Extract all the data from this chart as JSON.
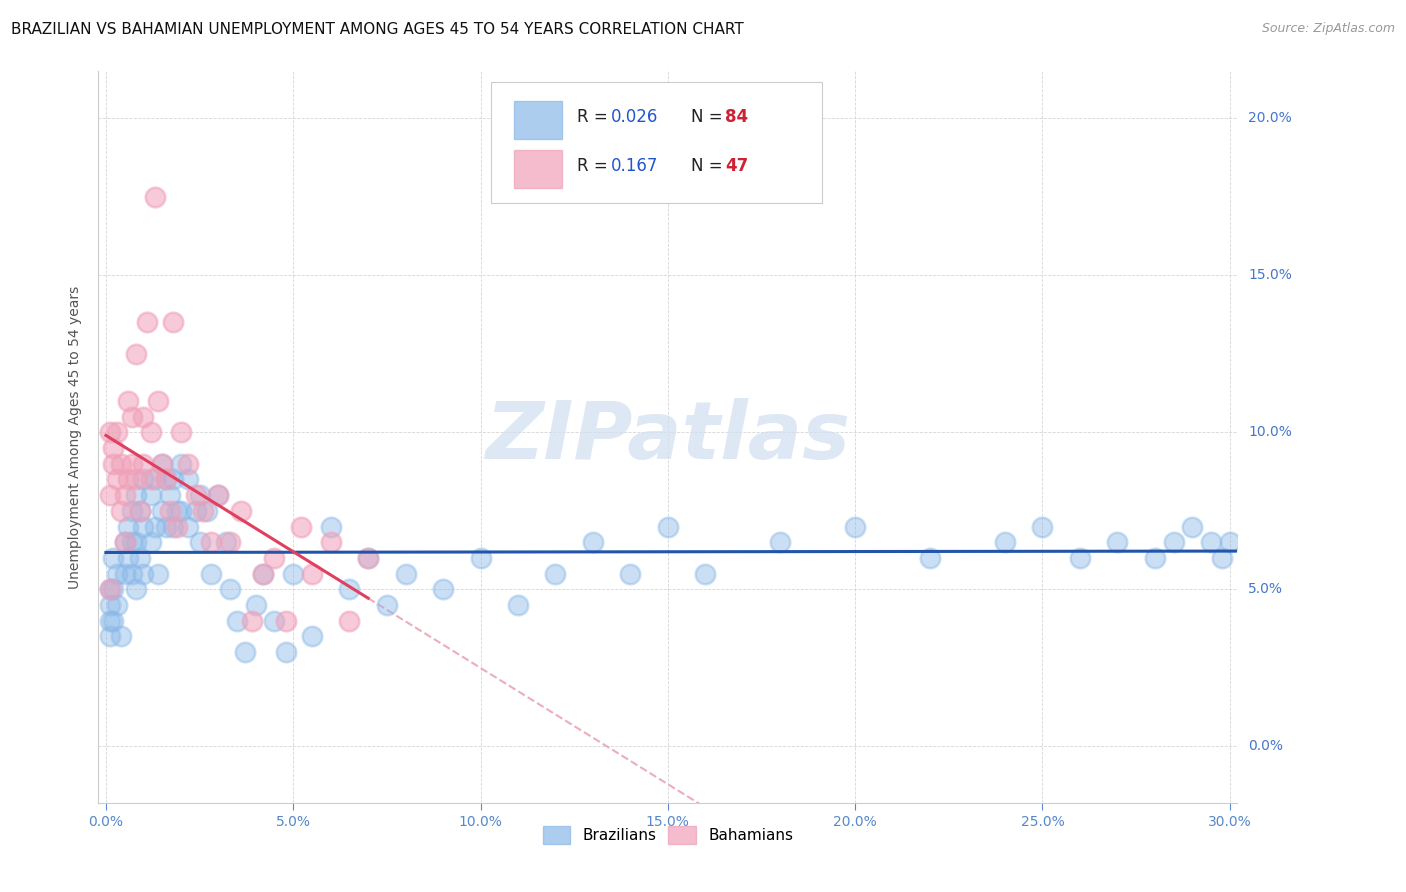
{
  "title": "BRAZILIAN VS BAHAMIAN UNEMPLOYMENT AMONG AGES 45 TO 54 YEARS CORRELATION CHART",
  "source": "Source: ZipAtlas.com",
  "ylabel": "Unemployment Among Ages 45 to 54 years",
  "ylabel_ticks_right": [
    "20.0%",
    "15.0%",
    "10.0%",
    "5.0%"
  ],
  "ylabel_vals": [
    0.0,
    0.05,
    0.1,
    0.15,
    0.2
  ],
  "xlabel_ticks": [
    "0.0%",
    "5.0%",
    "10.0%",
    "15.0%",
    "20.0%",
    "25.0%",
    "30.0%"
  ],
  "xlabel_vals": [
    0.0,
    0.05,
    0.1,
    0.15,
    0.2,
    0.25,
    0.3
  ],
  "xlim": [
    -0.002,
    0.302
  ],
  "ylim": [
    -0.018,
    0.215
  ],
  "brazilian_R": "0.026",
  "brazilian_N": "84",
  "bahamian_R": "0.167",
  "bahamian_N": "47",
  "brazilian_color": "#8ab8e8",
  "bahamian_color": "#f0a0b8",
  "brazilian_line_color": "#2255aa",
  "bahamian_line_color": "#e04060",
  "bahamian_dash_color": "#e8a0b0",
  "watermark_color": "#d0dff0",
  "legend_label_1": "Brazilians",
  "legend_label_2": "Bahamians",
  "title_fontsize": 11,
  "source_fontsize": 9,
  "axis_label_fontsize": 10,
  "tick_fontsize": 10,
  "background_color": "#ffffff",
  "plot_bg_color": "#ffffff",
  "brazilian_x": [
    0.001,
    0.001,
    0.001,
    0.001,
    0.002,
    0.002,
    0.002,
    0.003,
    0.003,
    0.004,
    0.005,
    0.005,
    0.006,
    0.006,
    0.007,
    0.007,
    0.007,
    0.008,
    0.008,
    0.008,
    0.009,
    0.009,
    0.01,
    0.01,
    0.01,
    0.012,
    0.012,
    0.013,
    0.013,
    0.014,
    0.015,
    0.015,
    0.016,
    0.016,
    0.017,
    0.018,
    0.018,
    0.019,
    0.02,
    0.02,
    0.022,
    0.022,
    0.024,
    0.025,
    0.025,
    0.027,
    0.028,
    0.03,
    0.032,
    0.033,
    0.035,
    0.037,
    0.04,
    0.042,
    0.045,
    0.048,
    0.05,
    0.055,
    0.06,
    0.065,
    0.07,
    0.075,
    0.08,
    0.09,
    0.1,
    0.11,
    0.12,
    0.13,
    0.14,
    0.15,
    0.16,
    0.18,
    0.2,
    0.22,
    0.24,
    0.25,
    0.26,
    0.27,
    0.28,
    0.285,
    0.29,
    0.295,
    0.298,
    0.3
  ],
  "brazilian_y": [
    0.05,
    0.045,
    0.04,
    0.035,
    0.06,
    0.05,
    0.04,
    0.055,
    0.045,
    0.035,
    0.065,
    0.055,
    0.07,
    0.06,
    0.075,
    0.065,
    0.055,
    0.08,
    0.065,
    0.05,
    0.075,
    0.06,
    0.085,
    0.07,
    0.055,
    0.08,
    0.065,
    0.085,
    0.07,
    0.055,
    0.09,
    0.075,
    0.085,
    0.07,
    0.08,
    0.085,
    0.07,
    0.075,
    0.09,
    0.075,
    0.085,
    0.07,
    0.075,
    0.08,
    0.065,
    0.075,
    0.055,
    0.08,
    0.065,
    0.05,
    0.04,
    0.03,
    0.045,
    0.055,
    0.04,
    0.03,
    0.055,
    0.035,
    0.07,
    0.05,
    0.06,
    0.045,
    0.055,
    0.05,
    0.06,
    0.045,
    0.055,
    0.065,
    0.055,
    0.07,
    0.055,
    0.065,
    0.07,
    0.06,
    0.065,
    0.07,
    0.06,
    0.065,
    0.06,
    0.065,
    0.07,
    0.065,
    0.06,
    0.065
  ],
  "bahamian_x": [
    0.001,
    0.001,
    0.001,
    0.002,
    0.002,
    0.003,
    0.003,
    0.004,
    0.004,
    0.005,
    0.005,
    0.006,
    0.006,
    0.007,
    0.007,
    0.008,
    0.008,
    0.009,
    0.01,
    0.01,
    0.011,
    0.012,
    0.012,
    0.013,
    0.014,
    0.015,
    0.016,
    0.017,
    0.018,
    0.019,
    0.02,
    0.022,
    0.024,
    0.026,
    0.028,
    0.03,
    0.033,
    0.036,
    0.039,
    0.042,
    0.045,
    0.048,
    0.052,
    0.055,
    0.06,
    0.065,
    0.07
  ],
  "bahamian_y": [
    0.05,
    0.08,
    0.1,
    0.09,
    0.095,
    0.085,
    0.1,
    0.075,
    0.09,
    0.08,
    0.065,
    0.11,
    0.085,
    0.105,
    0.09,
    0.125,
    0.085,
    0.075,
    0.105,
    0.09,
    0.135,
    0.1,
    0.085,
    0.175,
    0.11,
    0.09,
    0.085,
    0.075,
    0.135,
    0.07,
    0.1,
    0.09,
    0.08,
    0.075,
    0.065,
    0.08,
    0.065,
    0.075,
    0.04,
    0.055,
    0.06,
    0.04,
    0.07,
    0.055,
    0.065,
    0.04,
    0.06
  ]
}
